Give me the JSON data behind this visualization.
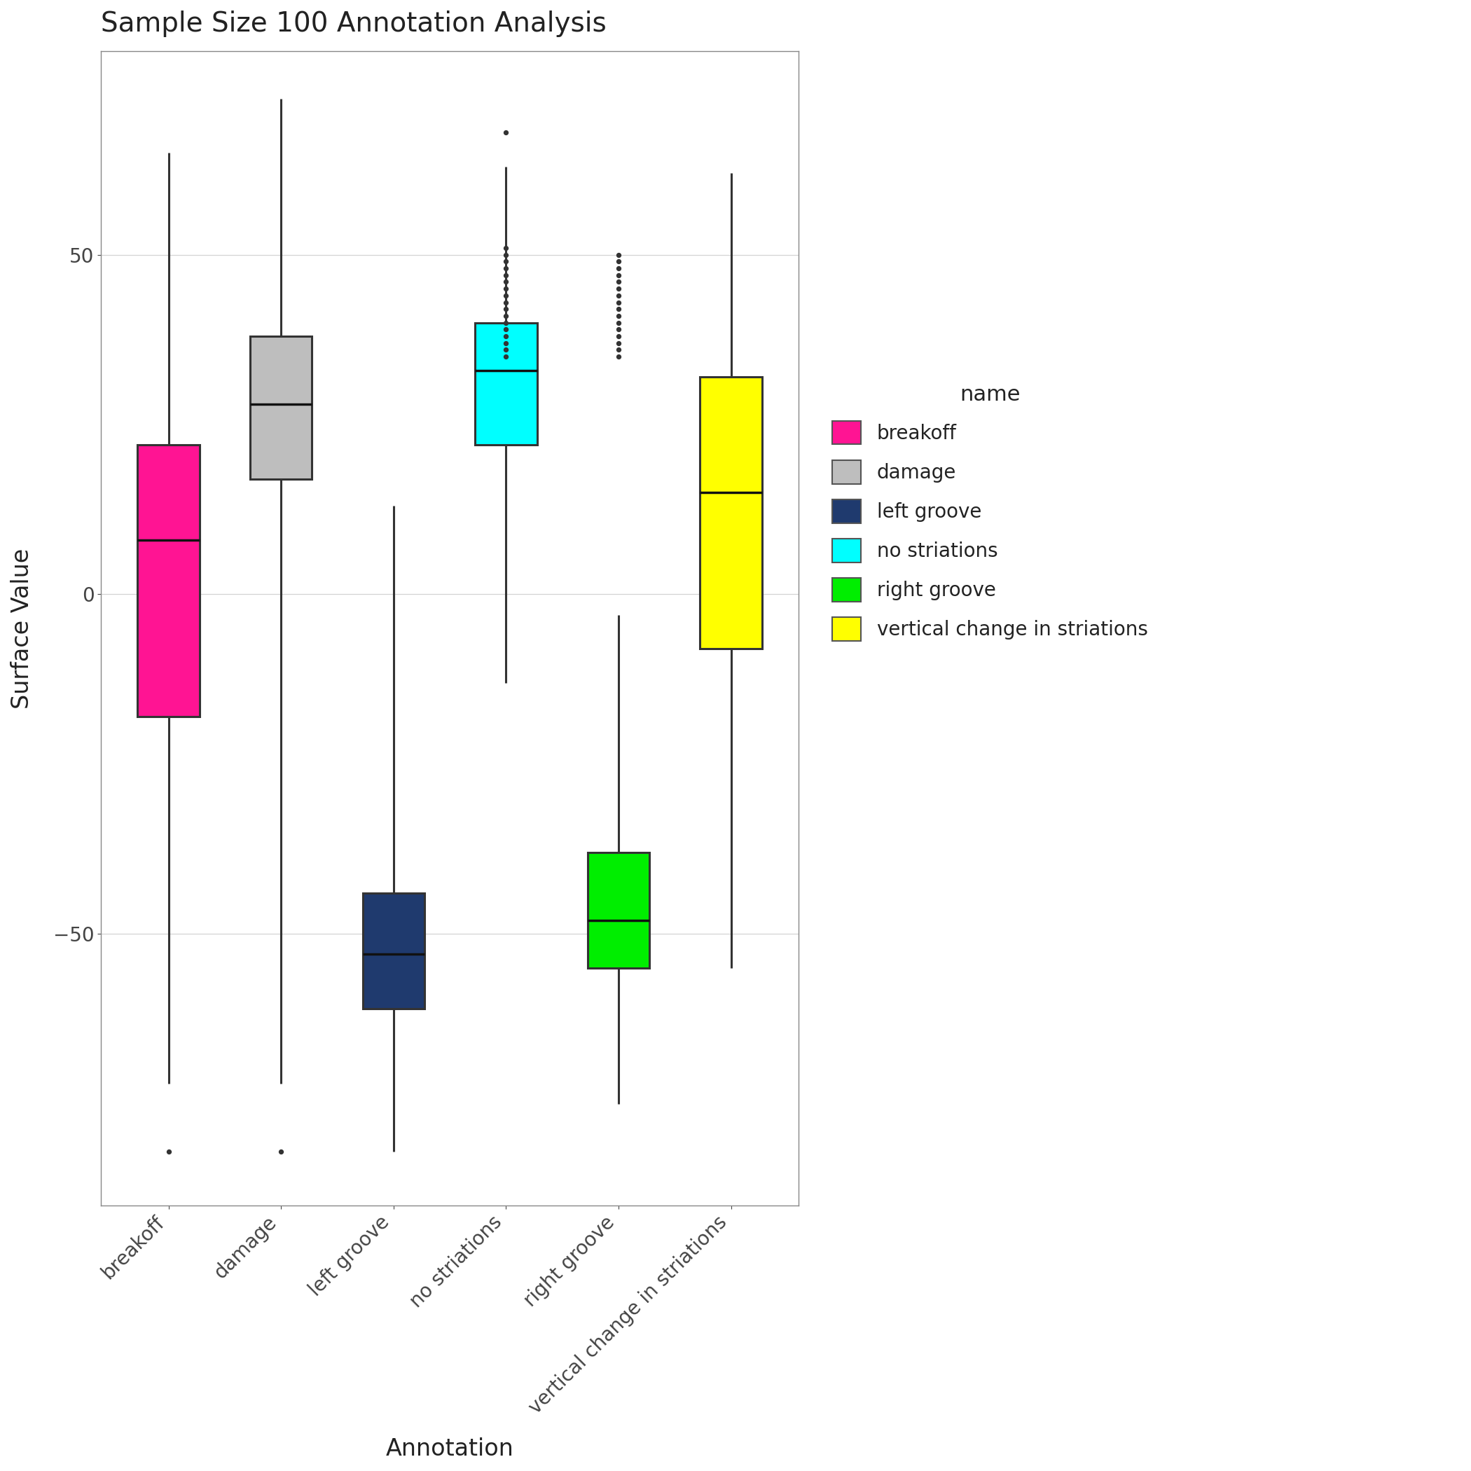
{
  "title": "Sample Size 100 Annotation Analysis",
  "xlabel": "Annotation",
  "ylabel": "Surface Value",
  "categories": [
    "breakoff",
    "damage",
    "left groove",
    "no striations",
    "right groove",
    "vertical change in striations"
  ],
  "colors": [
    "#FF1493",
    "#BEBEBE",
    "#1F3A6E",
    "#00FFFF",
    "#00EE00",
    "#FFFF00"
  ],
  "legend_title": "name",
  "background_color": "#FFFFFF",
  "plot_bg_color": "#FFFFFF",
  "grid_color": "#D3D3D3",
  "ylim": [
    -90,
    80
  ],
  "yticks": [
    -50,
    0,
    50
  ],
  "boxplot_data": {
    "breakoff": {
      "q1": -18,
      "median": 8,
      "q3": 22,
      "whisker_low": -72,
      "whisker_high": 65,
      "outliers": [
        -82
      ]
    },
    "damage": {
      "q1": 17,
      "median": 28,
      "q3": 38,
      "whisker_low": -72,
      "whisker_high": 73,
      "outliers": [
        -82
      ]
    },
    "left groove": {
      "q1": -61,
      "median": -53,
      "q3": -44,
      "whisker_low": -82,
      "whisker_high": 13,
      "outliers": []
    },
    "no striations": {
      "q1": 22,
      "median": 33,
      "q3": 40,
      "whisker_low": -13,
      "whisker_high": 63,
      "outliers": [
        68,
        35,
        36,
        37,
        38,
        39,
        40,
        41,
        42,
        43,
        44,
        45,
        46,
        47,
        48,
        49,
        50,
        51
      ]
    },
    "right groove": {
      "q1": -55,
      "median": -48,
      "q3": -38,
      "whisker_low": -75,
      "whisker_high": -3,
      "outliers": [
        35,
        36,
        37,
        38,
        39,
        40,
        41,
        42,
        43,
        44,
        45,
        46,
        47,
        48,
        49,
        50
      ]
    },
    "vertical change in striations": {
      "q1": -8,
      "median": 15,
      "q3": 32,
      "whisker_low": -55,
      "whisker_high": 62,
      "outliers": []
    }
  },
  "box_width": 0.55,
  "linewidth": 2.2,
  "median_linewidth": 2.5,
  "whisker_linewidth": 2.2,
  "flier_size": 18,
  "title_fontsize": 28,
  "label_fontsize": 24,
  "tick_fontsize": 20,
  "legend_fontsize": 20,
  "legend_title_fontsize": 22
}
